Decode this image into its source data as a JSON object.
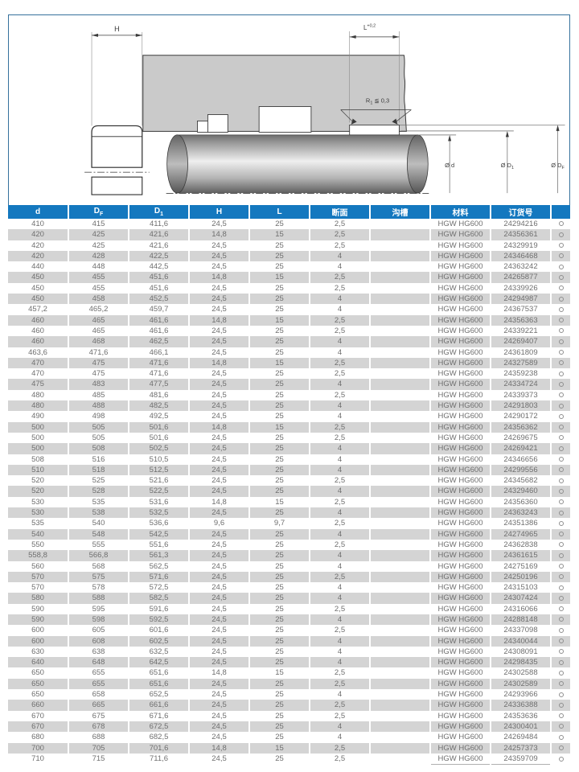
{
  "colors": {
    "header-bg": "#1478bf",
    "row-alt": "#d4d4d4",
    "frame": "#36719d",
    "housing": "#cacaca",
    "table-text": "#6f6f6f"
  },
  "drawing": {
    "h_label": "H",
    "l_label": {
      "base": "L",
      "sup": "+0,2"
    },
    "r1_label": {
      "base": "R",
      "sub": "1",
      "rest": " ≦ 0,3"
    },
    "dia_d": "Ø d",
    "dia_d1": {
      "base": "Ø D",
      "sub": "1"
    },
    "dia_df": {
      "base": "Ø D",
      "sub": "F"
    }
  },
  "table": {
    "headers": [
      {
        "base": "d"
      },
      {
        "base": "D",
        "sub": "F"
      },
      {
        "base": "D",
        "sub": "1"
      },
      {
        "base": "H"
      },
      {
        "base": "L"
      },
      {
        "base": "断面"
      },
      {
        "base": "沟槽"
      },
      {
        "base": "材料"
      },
      {
        "base": "订货号"
      },
      {
        "base": ""
      }
    ],
    "column_keys": [
      "d",
      "df",
      "d1",
      "h",
      "l",
      "section",
      "groove",
      "material",
      "order-no",
      "availability"
    ],
    "availability_symbol": "circle",
    "rows": [
      [
        "410",
        "415",
        "411,6",
        "24,5",
        "25",
        "2,5",
        "",
        "HGW HG600",
        "24294216"
      ],
      [
        "420",
        "425",
        "421,6",
        "14,8",
        "15",
        "2,5",
        "",
        "HGW HG600",
        "24356361"
      ],
      [
        "420",
        "425",
        "421,6",
        "24,5",
        "25",
        "2,5",
        "",
        "HGW HG600",
        "24329919"
      ],
      [
        "420",
        "428",
        "422,5",
        "24,5",
        "25",
        "4",
        "",
        "HGW HG600",
        "24346468"
      ],
      [
        "440",
        "448",
        "442,5",
        "24,5",
        "25",
        "4",
        "",
        "HGW HG600",
        "24363242"
      ],
      [
        "450",
        "455",
        "451,6",
        "14,8",
        "15",
        "2,5",
        "",
        "HGW HG600",
        "24265877"
      ],
      [
        "450",
        "455",
        "451,6",
        "24,5",
        "25",
        "2,5",
        "",
        "HGW HG600",
        "24339926"
      ],
      [
        "450",
        "458",
        "452,5",
        "24,5",
        "25",
        "4",
        "",
        "HGW HG600",
        "24294987"
      ],
      [
        "457,2",
        "465,2",
        "459,7",
        "24,5",
        "25",
        "4",
        "",
        "HGW HG600",
        "24367537"
      ],
      [
        "460",
        "465",
        "461,6",
        "14,8",
        "15",
        "2,5",
        "",
        "HGW HG600",
        "24356363"
      ],
      [
        "460",
        "465",
        "461,6",
        "24,5",
        "25",
        "2,5",
        "",
        "HGW HG600",
        "24339221"
      ],
      [
        "460",
        "468",
        "462,5",
        "24,5",
        "25",
        "4",
        "",
        "HGW HG600",
        "24269407"
      ],
      [
        "463,6",
        "471,6",
        "466,1",
        "24,5",
        "25",
        "4",
        "",
        "HGW HG600",
        "24361809"
      ],
      [
        "470",
        "475",
        "471,6",
        "14,8",
        "15",
        "2,5",
        "",
        "HGW HG600",
        "24327589"
      ],
      [
        "470",
        "475",
        "471,6",
        "24,5",
        "25",
        "2,5",
        "",
        "HGW HG600",
        "24359238"
      ],
      [
        "475",
        "483",
        "477,5",
        "24,5",
        "25",
        "4",
        "",
        "HGW HG600",
        "24334724"
      ],
      [
        "480",
        "485",
        "481,6",
        "24,5",
        "25",
        "2,5",
        "",
        "HGW HG600",
        "24339373"
      ],
      [
        "480",
        "488",
        "482,5",
        "24,5",
        "25",
        "4",
        "",
        "HGW HG600",
        "24291803"
      ],
      [
        "490",
        "498",
        "492,5",
        "24,5",
        "25",
        "4",
        "",
        "HGW HG600",
        "24290172"
      ],
      [
        "500",
        "505",
        "501,6",
        "14,8",
        "15",
        "2,5",
        "",
        "HGW HG600",
        "24356362"
      ],
      [
        "500",
        "505",
        "501,6",
        "24,5",
        "25",
        "2,5",
        "",
        "HGW HG600",
        "24269675"
      ],
      [
        "500",
        "508",
        "502,5",
        "24,5",
        "25",
        "4",
        "",
        "HGW HG600",
        "24269421"
      ],
      [
        "508",
        "516",
        "510,5",
        "24,5",
        "25",
        "4",
        "",
        "HGW HG600",
        "24346656"
      ],
      [
        "510",
        "518",
        "512,5",
        "24,5",
        "25",
        "4",
        "",
        "HGW HG600",
        "24299556"
      ],
      [
        "520",
        "525",
        "521,6",
        "24,5",
        "25",
        "2,5",
        "",
        "HGW HG600",
        "24345682"
      ],
      [
        "520",
        "528",
        "522,5",
        "24,5",
        "25",
        "4",
        "",
        "HGW HG600",
        "24329460"
      ],
      [
        "530",
        "535",
        "531,6",
        "14,8",
        "15",
        "2,5",
        "",
        "HGW HG600",
        "24356360"
      ],
      [
        "530",
        "538",
        "532,5",
        "24,5",
        "25",
        "4",
        "",
        "HGW HG600",
        "24363243"
      ],
      [
        "535",
        "540",
        "536,6",
        "9,6",
        "9,7",
        "2,5",
        "",
        "HGW HG600",
        "24351386"
      ],
      [
        "540",
        "548",
        "542,5",
        "24,5",
        "25",
        "4",
        "",
        "HGW HG600",
        "24274965"
      ],
      [
        "550",
        "555",
        "551,6",
        "24,5",
        "25",
        "2,5",
        "",
        "HGW HG600",
        "24362838"
      ],
      [
        "558,8",
        "566,8",
        "561,3",
        "24,5",
        "25",
        "4",
        "",
        "HGW HG600",
        "24361615"
      ],
      [
        "560",
        "568",
        "562,5",
        "24,5",
        "25",
        "4",
        "",
        "HGW HG600",
        "24275169"
      ],
      [
        "570",
        "575",
        "571,6",
        "24,5",
        "25",
        "2,5",
        "",
        "HGW HG600",
        "24250196"
      ],
      [
        "570",
        "578",
        "572,5",
        "24,5",
        "25",
        "4",
        "",
        "HGW HG600",
        "24315103"
      ],
      [
        "580",
        "588",
        "582,5",
        "24,5",
        "25",
        "4",
        "",
        "HGW HG600",
        "24307424"
      ],
      [
        "590",
        "595",
        "591,6",
        "24,5",
        "25",
        "2,5",
        "",
        "HGW HG600",
        "24316066"
      ],
      [
        "590",
        "598",
        "592,5",
        "24,5",
        "25",
        "4",
        "",
        "HGW HG600",
        "24288148"
      ],
      [
        "600",
        "605",
        "601,6",
        "24,5",
        "25",
        "2,5",
        "",
        "HGW HG600",
        "24337098"
      ],
      [
        "600",
        "608",
        "602,5",
        "24,5",
        "25",
        "4",
        "",
        "HGW HG600",
        "24340044"
      ],
      [
        "630",
        "638",
        "632,5",
        "24,5",
        "25",
        "4",
        "",
        "HGW HG600",
        "24308091"
      ],
      [
        "640",
        "648",
        "642,5",
        "24,5",
        "25",
        "4",
        "",
        "HGW HG600",
        "24298435"
      ],
      [
        "650",
        "655",
        "651,6",
        "14,8",
        "15",
        "2,5",
        "",
        "HGW HG600",
        "24302588"
      ],
      [
        "650",
        "655",
        "651,6",
        "24,5",
        "25",
        "2,5",
        "",
        "HGW HG600",
        "24302589"
      ],
      [
        "650",
        "658",
        "652,5",
        "24,5",
        "25",
        "4",
        "",
        "HGW HG600",
        "24293966"
      ],
      [
        "660",
        "665",
        "661,6",
        "24,5",
        "25",
        "2,5",
        "",
        "HGW HG600",
        "24336388"
      ],
      [
        "670",
        "675",
        "671,6",
        "24,5",
        "25",
        "2,5",
        "",
        "HGW HG600",
        "24353636"
      ],
      [
        "670",
        "678",
        "672,5",
        "24,5",
        "25",
        "4",
        "",
        "HGW HG600",
        "24300401"
      ],
      [
        "680",
        "688",
        "682,5",
        "24,5",
        "25",
        "4",
        "",
        "HGW HG600",
        "24269484"
      ],
      [
        "700",
        "705",
        "701,6",
        "14,8",
        "15",
        "2,5",
        "",
        "HGW HG600",
        "24257373"
      ],
      [
        "710",
        "715",
        "711,6",
        "24,5",
        "25",
        "2,5",
        "",
        "HGW HG600",
        "24359709"
      ]
    ]
  }
}
